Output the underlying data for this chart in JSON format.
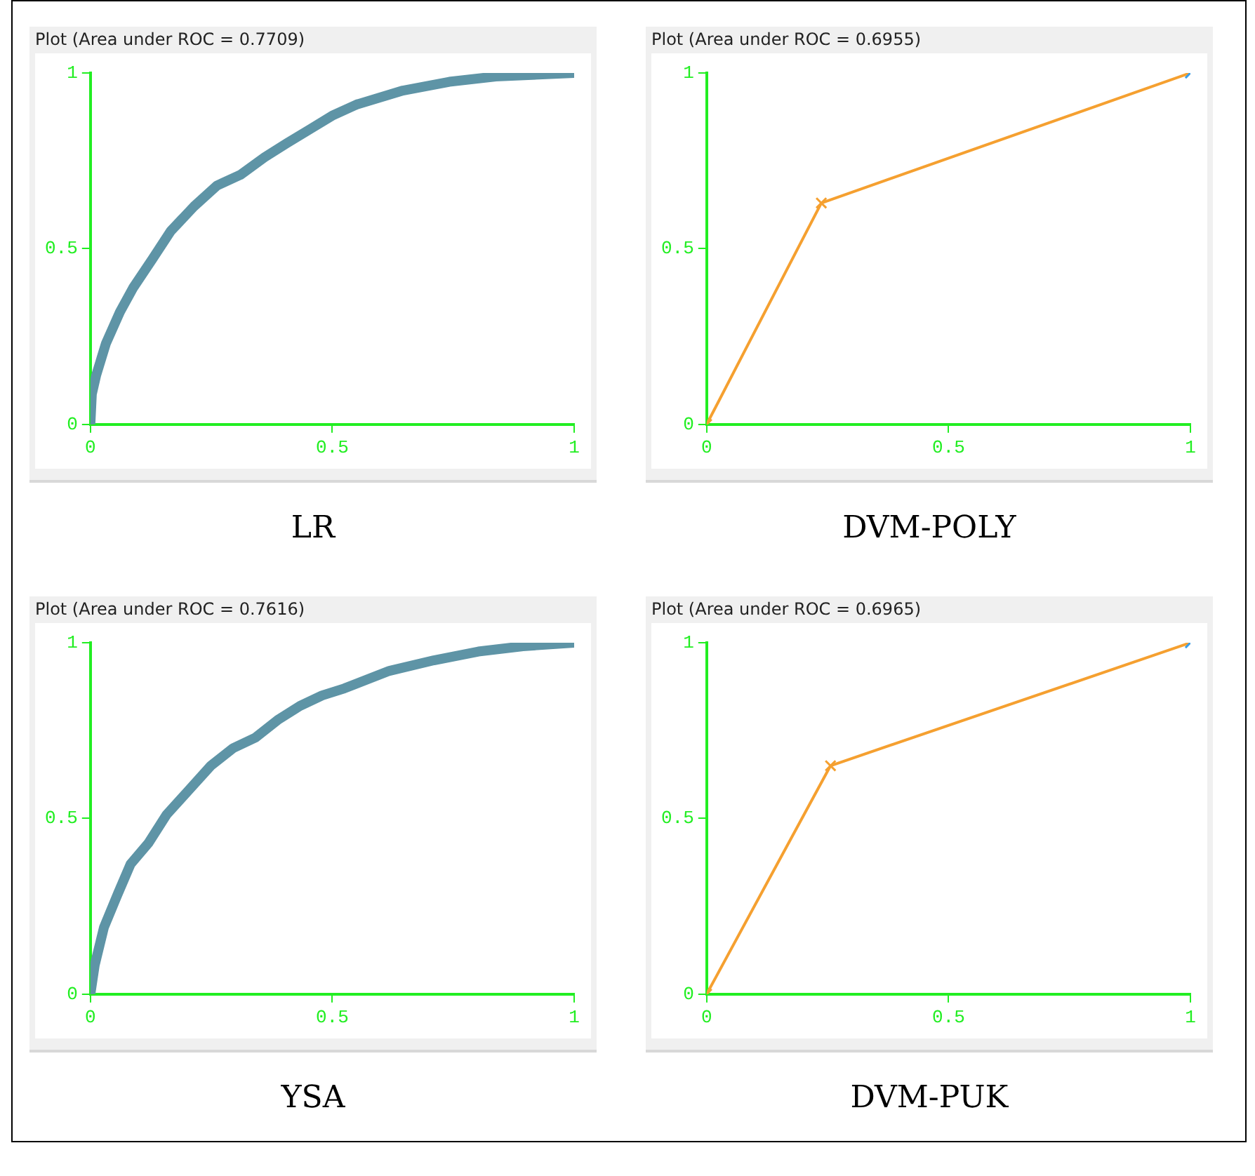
{
  "chart_data": [
    {
      "type": "line",
      "title": "Plot (Area under ROC = 0.7709)",
      "annotations": [
        "LR"
      ],
      "xlim": [
        0,
        1
      ],
      "ylim": [
        0,
        1
      ],
      "xticks": [
        0,
        0.5,
        1
      ],
      "yticks": [
        0,
        0.5,
        1
      ],
      "grid": false,
      "legend": false,
      "marker": "none",
      "x": [
        0,
        0.003,
        0.012,
        0.032,
        0.061,
        0.089,
        0.128,
        0.166,
        0.214,
        0.262,
        0.31,
        0.36,
        0.406,
        0.454,
        0.502,
        0.55,
        0.646,
        0.742,
        0.838,
        0.934,
        1
      ],
      "series": [
        {
          "values": [
            0,
            0.086,
            0.14,
            0.23,
            0.32,
            0.39,
            0.47,
            0.55,
            0.62,
            0.68,
            0.71,
            0.76,
            0.8,
            0.84,
            0.88,
            0.91,
            0.95,
            0.975,
            0.99,
            0.996,
            1
          ],
          "color": "#5e94a6"
        }
      ]
    },
    {
      "type": "line",
      "title": "Plot (Area under ROC = 0.6955)",
      "annotations": [
        "DVM-POLY"
      ],
      "xlim": [
        0,
        1
      ],
      "ylim": [
        0,
        1
      ],
      "xticks": [
        0,
        0.5,
        1
      ],
      "yticks": [
        0,
        0.5,
        1
      ],
      "grid": false,
      "legend": false,
      "marker": "cross",
      "x": [
        0,
        0.237,
        1
      ],
      "series": [
        {
          "values": [
            0,
            0.63,
            1
          ],
          "colors": [
            "#f5a030",
            "#f5a030",
            "#3a9ee8"
          ]
        }
      ]
    },
    {
      "type": "line",
      "title": "Plot (Area under ROC = 0.7616)",
      "annotations": [
        "YSA"
      ],
      "xlim": [
        0,
        1
      ],
      "ylim": [
        0,
        1
      ],
      "xticks": [
        0,
        0.5,
        1
      ],
      "yticks": [
        0,
        0.5,
        1
      ],
      "grid": false,
      "legend": false,
      "marker": "none",
      "x": [
        0,
        0.009,
        0.028,
        0.055,
        0.083,
        0.12,
        0.157,
        0.203,
        0.249,
        0.295,
        0.341,
        0.387,
        0.433,
        0.479,
        0.525,
        0.618,
        0.71,
        0.802,
        0.894,
        1
      ],
      "series": [
        {
          "values": [
            0,
            0.083,
            0.19,
            0.28,
            0.37,
            0.43,
            0.51,
            0.58,
            0.65,
            0.7,
            0.73,
            0.78,
            0.82,
            0.85,
            0.87,
            0.92,
            0.95,
            0.975,
            0.99,
            1
          ],
          "color": "#5e94a6"
        }
      ]
    },
    {
      "type": "line",
      "title": "Plot (Area under ROC = 0.6965)",
      "annotations": [
        "DVM-PUK"
      ],
      "xlim": [
        0,
        1
      ],
      "ylim": [
        0,
        1
      ],
      "xticks": [
        0,
        0.5,
        1
      ],
      "yticks": [
        0,
        0.5,
        1
      ],
      "grid": false,
      "legend": false,
      "marker": "cross",
      "x": [
        0,
        0.256,
        1
      ],
      "series": [
        {
          "values": [
            0,
            0.65,
            1
          ],
          "colors": [
            "#f5a030",
            "#f5a030",
            "#3a9ee8"
          ]
        }
      ]
    }
  ]
}
